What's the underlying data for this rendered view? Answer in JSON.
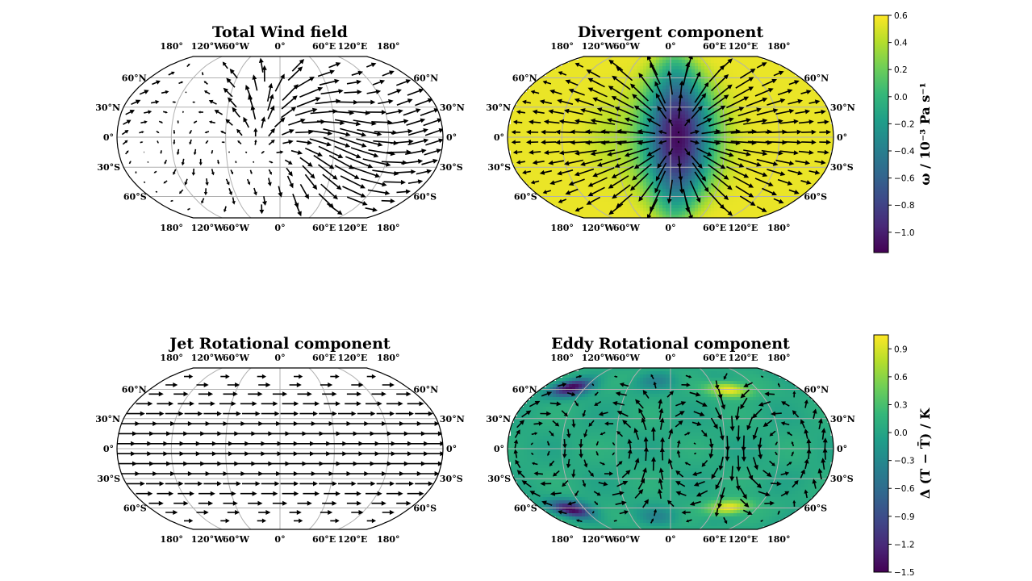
{
  "chart_data": [
    {
      "type": "quiver-map",
      "id": "total",
      "title": "Total Wind field",
      "projection": "Robinson",
      "lon_ticks": [
        "180°",
        "120°W",
        "60°W",
        "0°",
        "60°E",
        "120°E",
        "180°"
      ],
      "lat_ticks": [
        "60°N",
        "30°N",
        "0°",
        "30°S",
        "60°S"
      ],
      "background": "none"
    },
    {
      "type": "quiver-map",
      "id": "divergent",
      "title": "Divergent component",
      "projection": "Robinson",
      "lon_ticks": [
        "180°",
        "120°W",
        "60°W",
        "0°",
        "60°E",
        "120°E",
        "180°"
      ],
      "lat_ticks": [
        "60°N",
        "30°N",
        "0°",
        "30°S",
        "60°S"
      ],
      "background": "omega"
    },
    {
      "type": "quiver-map",
      "id": "jet",
      "title": "Jet Rotational component",
      "projection": "Robinson",
      "lon_ticks": [
        "180°",
        "120°W",
        "60°W",
        "0°",
        "60°E",
        "120°E",
        "180°"
      ],
      "lat_ticks": [
        "60°N",
        "30°N",
        "0°",
        "30°S",
        "60°S"
      ],
      "background": "none"
    },
    {
      "type": "quiver-map",
      "id": "eddy",
      "title": "Eddy Rotational component",
      "projection": "Robinson",
      "lon_ticks": [
        "180°",
        "120°W",
        "60°W",
        "0°",
        "60°E",
        "120°E",
        "180°"
      ],
      "lat_ticks": [
        "60°N",
        "30°N",
        "0°",
        "30°S",
        "60°S"
      ],
      "background": "temperature"
    }
  ],
  "colorbars": [
    {
      "id": "omega",
      "label": "ω / 10⁻³ Pa s⁻¹",
      "colormap": "viridis",
      "range": [
        -1.15,
        0.6
      ],
      "ticks": [
        "0.6",
        "0.4",
        "0.2",
        "0.0",
        "−0.2",
        "−0.4",
        "−0.6",
        "−0.8",
        "−1.0"
      ]
    },
    {
      "id": "temperature",
      "label": "Δ (T − T̄) / K",
      "colormap": "viridis",
      "range": [
        -1.5,
        1.05
      ],
      "ticks": [
        "0.9",
        "0.6",
        "0.3",
        "0.0",
        "−0.3",
        "−0.6",
        "−0.9",
        "−1.2",
        "−1.5"
      ]
    }
  ],
  "colors": {
    "viridis": [
      "#440154",
      "#482878",
      "#3e4989",
      "#31688e",
      "#26828e",
      "#1f9e89",
      "#35b779",
      "#6ece58",
      "#b5de2b",
      "#fde725"
    ],
    "grid": "#b0b0b0",
    "arrow": "#000000"
  }
}
